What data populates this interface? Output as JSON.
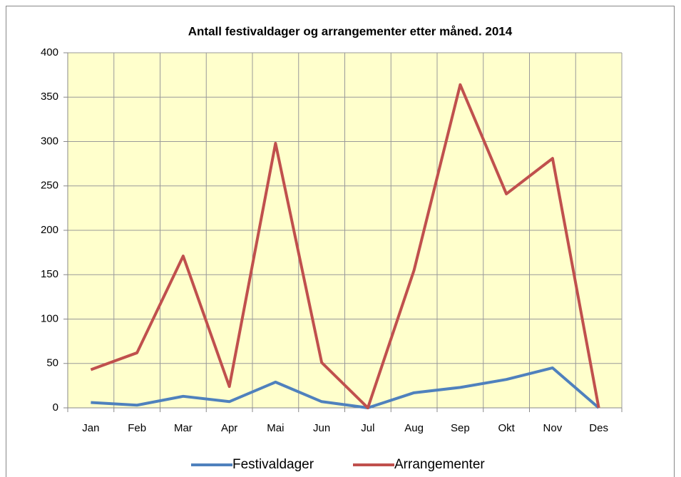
{
  "chart_data": {
    "type": "line",
    "title": "Antall festivaldager og arrangementer etter måned. 2014",
    "categories": [
      "Jan",
      "Feb",
      "Mar",
      "Apr",
      "Mai",
      "Jun",
      "Jul",
      "Aug",
      "Sep",
      "Okt",
      "Nov",
      "Des"
    ],
    "series": [
      {
        "name": "Festivaldager",
        "color": "#4f81bd",
        "values": [
          6,
          3,
          13,
          7,
          29,
          7,
          0,
          17,
          23,
          32,
          45,
          0
        ]
      },
      {
        "name": "Arrangementer",
        "color": "#c0504d",
        "values": [
          43,
          62,
          171,
          24,
          298,
          51,
          0,
          155,
          364,
          241,
          281,
          0
        ]
      }
    ],
    "ylim": [
      0,
      400
    ],
    "yticks": [
      0,
      50,
      100,
      150,
      200,
      250,
      300,
      350,
      400
    ],
    "grid": true,
    "legend": "bottom",
    "plot_background": "#ffffcc"
  }
}
